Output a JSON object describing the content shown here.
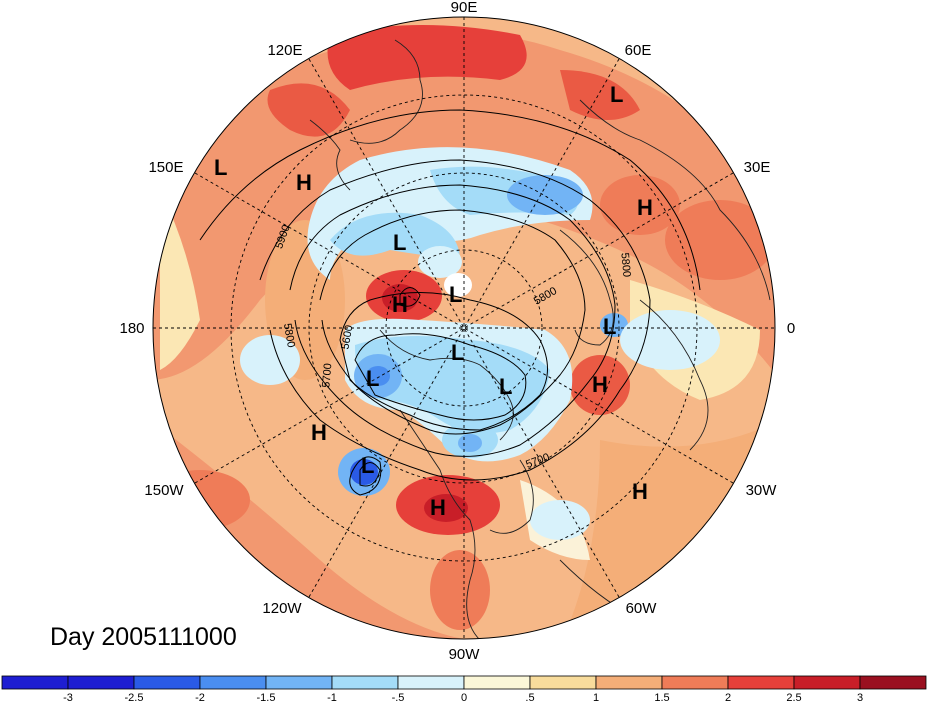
{
  "title": "Day 2005111000",
  "map": {
    "projection": "north-polar-stereographic",
    "longitude_labels": [
      "90E",
      "60E",
      "30E",
      "0",
      "30W",
      "60W",
      "90W",
      "120W",
      "150W",
      "180",
      "150E",
      "120E"
    ],
    "pressure_systems": [
      {
        "type": "L",
        "region": "eastern-asia-north"
      },
      {
        "type": "L",
        "region": "western-pacific"
      },
      {
        "type": "H",
        "region": "east-asia"
      },
      {
        "type": "H",
        "region": "central-eurasia"
      },
      {
        "type": "L",
        "region": "eastern-siberia"
      },
      {
        "type": "H",
        "region": "bering-sea"
      },
      {
        "type": "L",
        "region": "arctic-ocean"
      },
      {
        "type": "L",
        "region": "western-europe"
      },
      {
        "type": "L",
        "region": "north-pole"
      },
      {
        "type": "L",
        "region": "alaska"
      },
      {
        "type": "L",
        "region": "hudson-bay"
      },
      {
        "type": "H",
        "region": "north-atlantic"
      },
      {
        "type": "H",
        "region": "north-pacific"
      },
      {
        "type": "L",
        "region": "eastern-pacific"
      },
      {
        "type": "H",
        "region": "southern-usa"
      },
      {
        "type": "H",
        "region": "central-atlantic"
      }
    ],
    "contour_labels": [
      "5900",
      "5800",
      "5800",
      "5800",
      "5600",
      "5700",
      "5700"
    ]
  },
  "colorbar": {
    "ticks": [
      "-3",
      "-2.5",
      "-2",
      "-1.5",
      "-1",
      "-.5",
      "0",
      ".5",
      "1",
      "1.5",
      "2",
      "2.5",
      "3"
    ],
    "colors": [
      "#1e1ed2",
      "#2a5ae6",
      "#4a8ef0",
      "#72b4f5",
      "#a4dcf8",
      "#d8f2fb",
      "#fbf7d8",
      "#f8dc9c",
      "#f4ae78",
      "#ef7c58",
      "#e6403a",
      "#c81e28",
      "#9a1020"
    ]
  }
}
